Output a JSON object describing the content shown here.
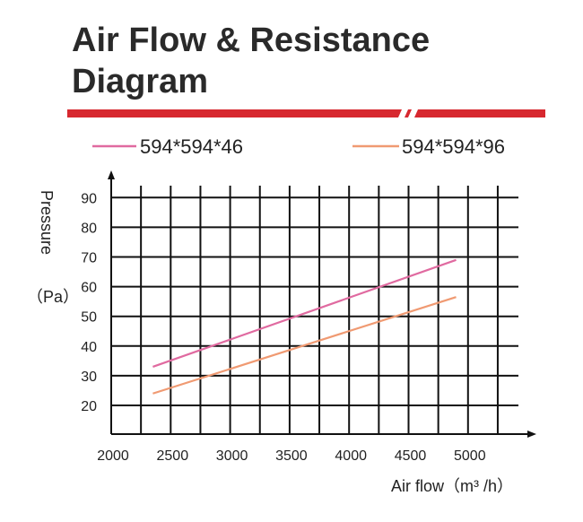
{
  "title": "Air Flow & Resistance Diagram",
  "colors": {
    "accent_bar": "#d7282f",
    "grid": "#111111"
  },
  "chart_data": {
    "type": "line",
    "title": "Air Flow & Resistance Diagram",
    "xlabel": "Air flow（m³ /h）",
    "ylabel_top": "Pressure",
    "ylabel_unit": "（Pa）",
    "xlim": [
      2000,
      5500
    ],
    "ylim": [
      10,
      95
    ],
    "x_ticks": [
      2000,
      2500,
      3000,
      3500,
      4000,
      4500,
      5000
    ],
    "y_ticks": [
      20,
      30,
      40,
      50,
      60,
      70,
      80,
      90
    ],
    "grid": true,
    "legend_position": "top",
    "series": [
      {
        "name": "594*594*46",
        "color": "#e06aa0",
        "x": [
          2350,
          4900
        ],
        "y": [
          33,
          69
        ]
      },
      {
        "name": "594*594*96",
        "color": "#f09a72",
        "x": [
          2350,
          4900
        ],
        "y": [
          24,
          56.5
        ]
      }
    ]
  }
}
